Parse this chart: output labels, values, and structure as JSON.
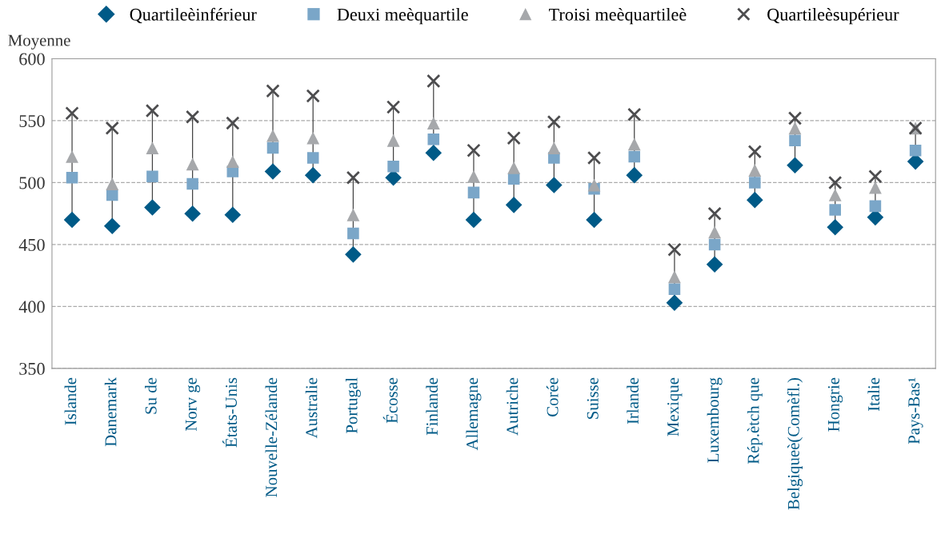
{
  "chart_data": {
    "type": "scatter",
    "ylabel": "Moyenne",
    "categories": [
      "Islande",
      "Danemark",
      "Su de",
      "Norv ge",
      "États-Unis",
      "Nouvelle-Zélande",
      "Australie",
      "Portugal",
      "Écosse",
      "Finlande",
      "Allemagne",
      "Autriche",
      "Corée",
      "Suisse",
      "Irlande",
      "Mexique",
      "Luxembourg",
      "Rép.ètch que",
      "Belgiqueè(Comèfl.)",
      "Hongrie",
      "Italie",
      "Pays-Bas¹"
    ],
    "series": [
      {
        "name": "Quartileèinférieur",
        "color": "#005a87",
        "marker": "diamond",
        "values": [
          470,
          465,
          480,
          475,
          474,
          509,
          506,
          442,
          504,
          524,
          470,
          482,
          498,
          470,
          506,
          403,
          434,
          486,
          514,
          464,
          472,
          517
        ]
      },
      {
        "name": "Deuxi meèquartile",
        "color": "#7aa6c8",
        "marker": "square",
        "values": [
          504,
          490,
          505,
          499,
          509,
          528,
          520,
          459,
          513,
          535,
          492,
          503,
          520,
          495,
          521,
          414,
          450,
          500,
          534,
          478,
          481,
          526
        ]
      },
      {
        "name": "Troisi meèquartileè",
        "color": "#a6a8ab",
        "marker": "triangle",
        "values": [
          521,
          499,
          528,
          515,
          517,
          538,
          536,
          474,
          534,
          548,
          505,
          512,
          528,
          498,
          531,
          424,
          460,
          510,
          544,
          490,
          496,
          544
        ]
      },
      {
        "name": "Quartileèsupérieur",
        "color": "#4d4d4f",
        "marker": "cross",
        "values": [
          556,
          544,
          558,
          553,
          548,
          574,
          570,
          504,
          561,
          582,
          526,
          536,
          549,
          520,
          555,
          446,
          475,
          525,
          552,
          500,
          505,
          544
        ]
      }
    ],
    "ylim": [
      350,
      600
    ],
    "yticks": [
      350,
      400,
      450,
      500,
      550,
      600
    ],
    "grid": "y",
    "legend": "top"
  }
}
